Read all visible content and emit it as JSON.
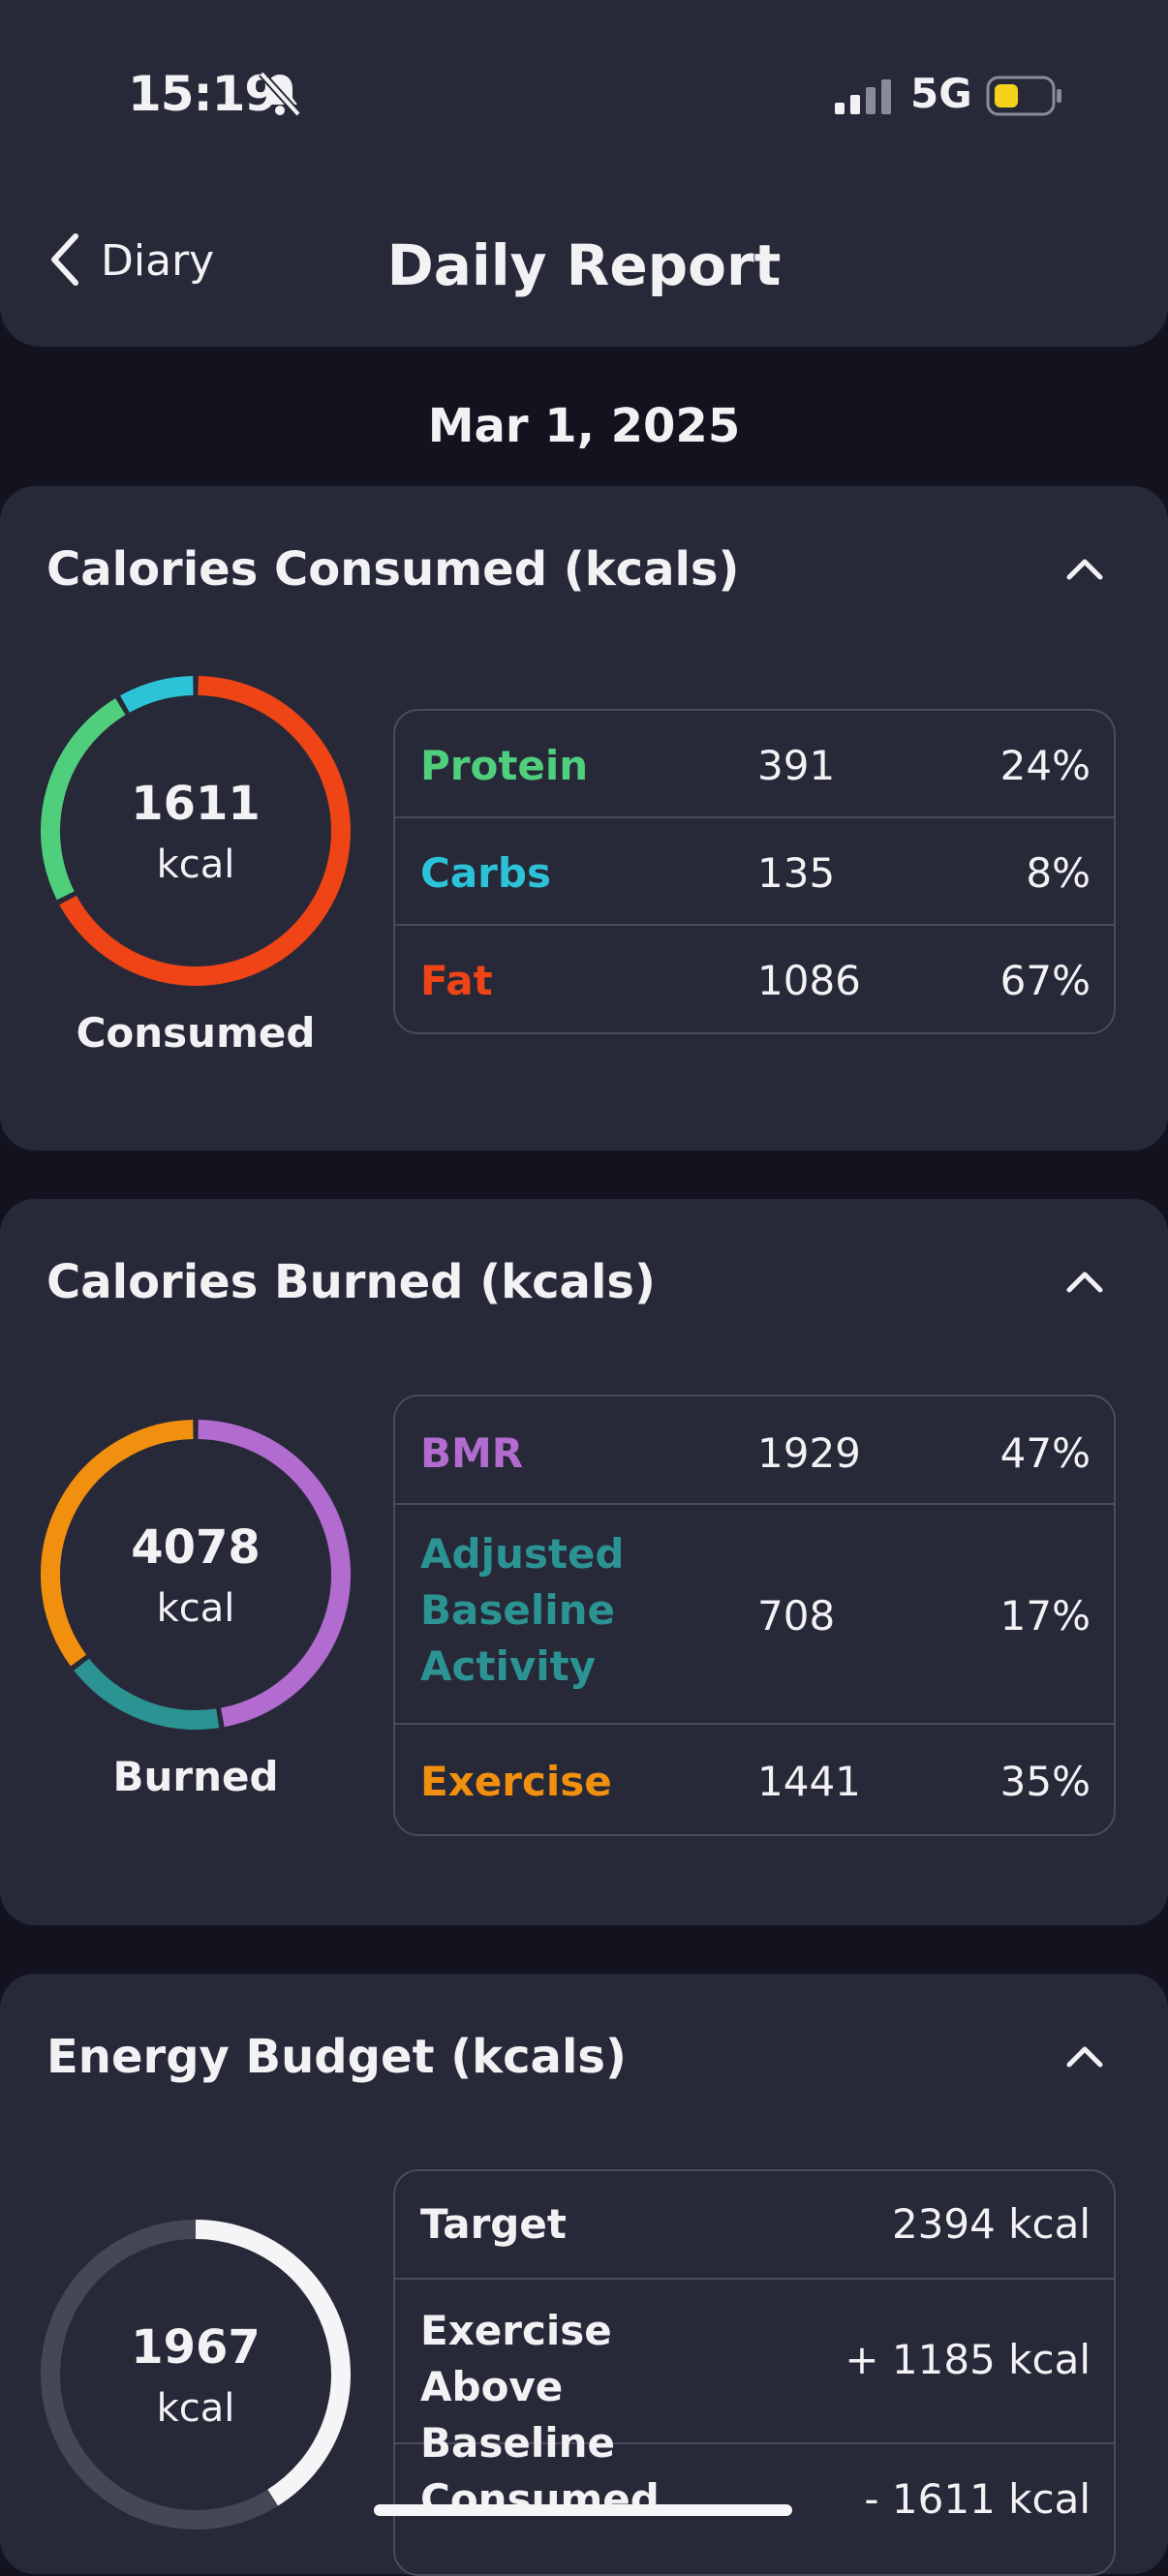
{
  "status_bar": {
    "time": "15:19",
    "network": "5G"
  },
  "nav": {
    "back_label": "Diary",
    "title": "Daily Report"
  },
  "date": "Mar 1, 2025",
  "consumed": {
    "title": "Calories Consumed (kcals)",
    "total": "1611",
    "unit": "kcal",
    "caption": "Consumed",
    "rows": [
      {
        "label": "Protein",
        "value": "391",
        "percent": "24%",
        "color": "#4fcf7c"
      },
      {
        "label": "Carbs",
        "value": "135",
        "percent": "8%",
        "color": "#2cc3d8"
      },
      {
        "label": "Fat",
        "value": "1086",
        "percent": "67%",
        "color": "#ee4416"
      }
    ]
  },
  "burned": {
    "title": "Calories Burned (kcals)",
    "total": "4078",
    "unit": "kcal",
    "caption": "Burned",
    "rows": [
      {
        "label": "BMR",
        "value": "1929",
        "percent": "47%",
        "color": "#b26cd0"
      },
      {
        "label": "Adjusted Baseline Activity",
        "value": "708",
        "percent": "17%",
        "color": "#2c9393"
      },
      {
        "label": "Exercise",
        "value": "1441",
        "percent": "35%",
        "color": "#f18f0e"
      }
    ]
  },
  "budget": {
    "title": "Energy Budget (kcals)",
    "total": "1967",
    "unit": "kcal",
    "rows": [
      {
        "label": "Target",
        "value": "2394 kcal"
      },
      {
        "label": "Exercise Above Baseline",
        "value": "+ 1185 kcal"
      },
      {
        "label": "Consumed",
        "value": "- 1611 kcal"
      }
    ]
  },
  "colors": {
    "page_bg": "#12131f",
    "card_bg": "#272939",
    "border": "#4a4c5e"
  }
}
